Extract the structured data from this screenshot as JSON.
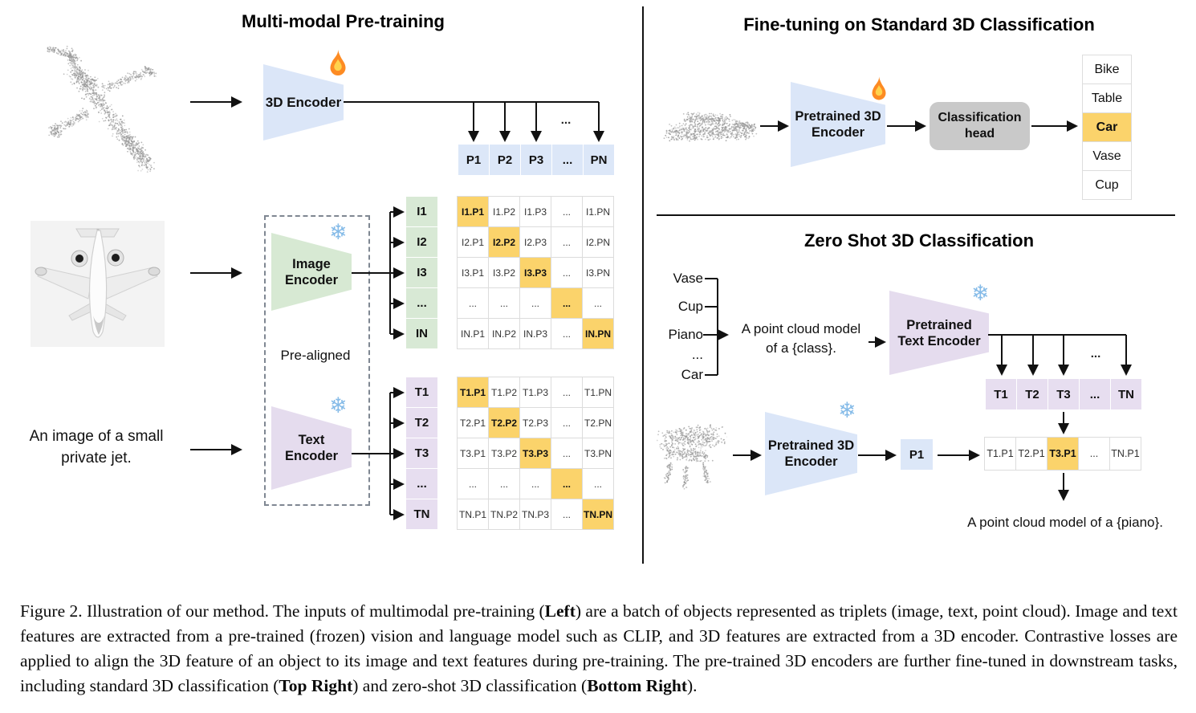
{
  "figure": {
    "panels": {
      "pretrain": {
        "title": "Multi-modal Pre-training",
        "encoder_3d_label": "3D Encoder",
        "image_encoder_label": "Image Encoder",
        "text_encoder_label": "Text Encoder",
        "prealigned_label": "Pre-aligned",
        "text_prompt": "An image of a small private jet.",
        "ellipsis": "...",
        "p_row": [
          "P1",
          "P2",
          "P3",
          "...",
          "PN"
        ],
        "i_col": [
          "I1",
          "I2",
          "I3",
          "...",
          "IN"
        ],
        "i_matrix": [
          [
            "I1.P1",
            "I1.P2",
            "I1.P3",
            "...",
            "I1.PN"
          ],
          [
            "I2.P1",
            "I2.P2",
            "I2.P3",
            "...",
            "I2.PN"
          ],
          [
            "I3.P1",
            "I3.P2",
            "I3.P3",
            "...",
            "I3.PN"
          ],
          [
            "...",
            "...",
            "...",
            "...",
            "..."
          ],
          [
            "IN.P1",
            "IN.P2",
            "IN.P3",
            "...",
            "IN.PN"
          ]
        ],
        "t_col": [
          "T1",
          "T2",
          "T3",
          "...",
          "TN"
        ],
        "t_matrix": [
          [
            "T1.P1",
            "T1.P2",
            "T1.P3",
            "...",
            "T1.PN"
          ],
          [
            "T2.P1",
            "T2.P2",
            "T2.P3",
            "...",
            "T2.PN"
          ],
          [
            "T3.P1",
            "T3.P2",
            "T3.P3",
            "...",
            "T3.PN"
          ],
          [
            "...",
            "...",
            "...",
            "...",
            "..."
          ],
          [
            "TN.P1",
            "TN.P2",
            "TN.P3",
            "...",
            "TN.PN"
          ]
        ]
      },
      "finetune": {
        "title": "Fine-tuning on Standard 3D Classification",
        "encoder_label": "Pretrained 3D Encoder",
        "head_label": "Classification head",
        "classes": [
          "Bike",
          "Table",
          "Car",
          "Vase",
          "Cup"
        ],
        "predicted_class": "Car"
      },
      "zeroshot": {
        "title": "Zero Shot 3D Classification",
        "class_list": [
          "Vase",
          "Cup",
          "Piano",
          "...",
          "Car"
        ],
        "prompt": "A point cloud model of a {class}.",
        "text_encoder_label": "Pretrained Text Encoder",
        "encoder_label": "Pretrained 3D Encoder",
        "p_box_label": "P1",
        "t_row": [
          "T1",
          "T2",
          "T3",
          "...",
          "TN"
        ],
        "result_row": [
          "T1.P1",
          "T2.P1",
          "T3.P1",
          "...",
          "TN.P1"
        ],
        "highlighted_result": "T3.P1",
        "result_caption": "A point cloud model of a {piano}.",
        "ellipsis": "..."
      }
    },
    "icons": {
      "trainable": "fire-icon",
      "frozen": "snowflake-icon",
      "snowflake_glyph": "❄"
    },
    "colors": {
      "encoder_blue": "#dbe6f8",
      "encoder_green": "#d7e9d3",
      "encoder_purple": "#e5dcee",
      "highlight_orange": "#fbd36b",
      "head_gray": "#c9c9c9",
      "cell_border": "#dcdcdc"
    }
  },
  "caption": {
    "segments": [
      {
        "t": "Figure 2. Illustration of our method. The inputs of multimodal pre-training (",
        "b": false
      },
      {
        "t": "Left",
        "b": true
      },
      {
        "t": ") are a batch of objects represented as triplets (image, text, point cloud). Image and text features are extracted from a pre-trained (frozen) vision and language model such as CLIP, and 3D features are extracted from a 3D encoder. Contrastive losses are applied to align the 3D feature of an object to its image and text features during pre-training. The pre-trained 3D encoders are further fine-tuned in downstream tasks, including standard 3D classification (",
        "b": false
      },
      {
        "t": "Top Right",
        "b": true
      },
      {
        "t": ") and zero-shot 3D classification (",
        "b": false
      },
      {
        "t": "Bottom Right",
        "b": true
      },
      {
        "t": ").",
        "b": false
      }
    ]
  }
}
